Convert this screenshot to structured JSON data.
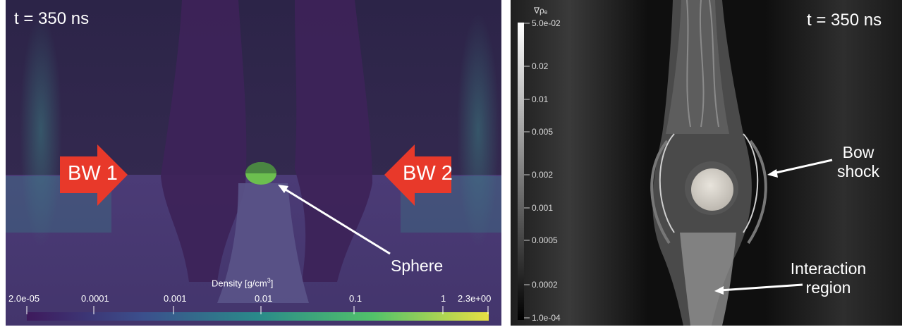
{
  "left": {
    "time_label": "t = 350 ns",
    "arrow_left": "BW 1",
    "arrow_right": "BW 2",
    "sphere_label": "Sphere",
    "colorbar": {
      "title": "Density [g/cm",
      "title_sup": "3",
      "title_end": "]",
      "ticks": [
        "2.0e-05",
        "0.0001",
        "0.001",
        "0.01",
        "0.1",
        "1",
        "2.3e+00"
      ]
    }
  },
  "right": {
    "time_label": "t = 350 ns",
    "colorbar_title": "∇ρₑ",
    "colorbar_ticks": [
      "5.0e-02",
      "0.02",
      "0.01",
      "0.005",
      "0.002",
      "0.001",
      "0.0005",
      "0.0002",
      "1.0e-04"
    ],
    "bow_shock_label_1": "Bow",
    "bow_shock_label_2": "shock",
    "interaction_label_1": "Interaction",
    "interaction_label_2": "region"
  },
  "colors": {
    "arrow_red": "#e8392a",
    "sphere_green": "#6cbf4f",
    "background_purple": "#2b2240",
    "right_background": "#101010"
  }
}
